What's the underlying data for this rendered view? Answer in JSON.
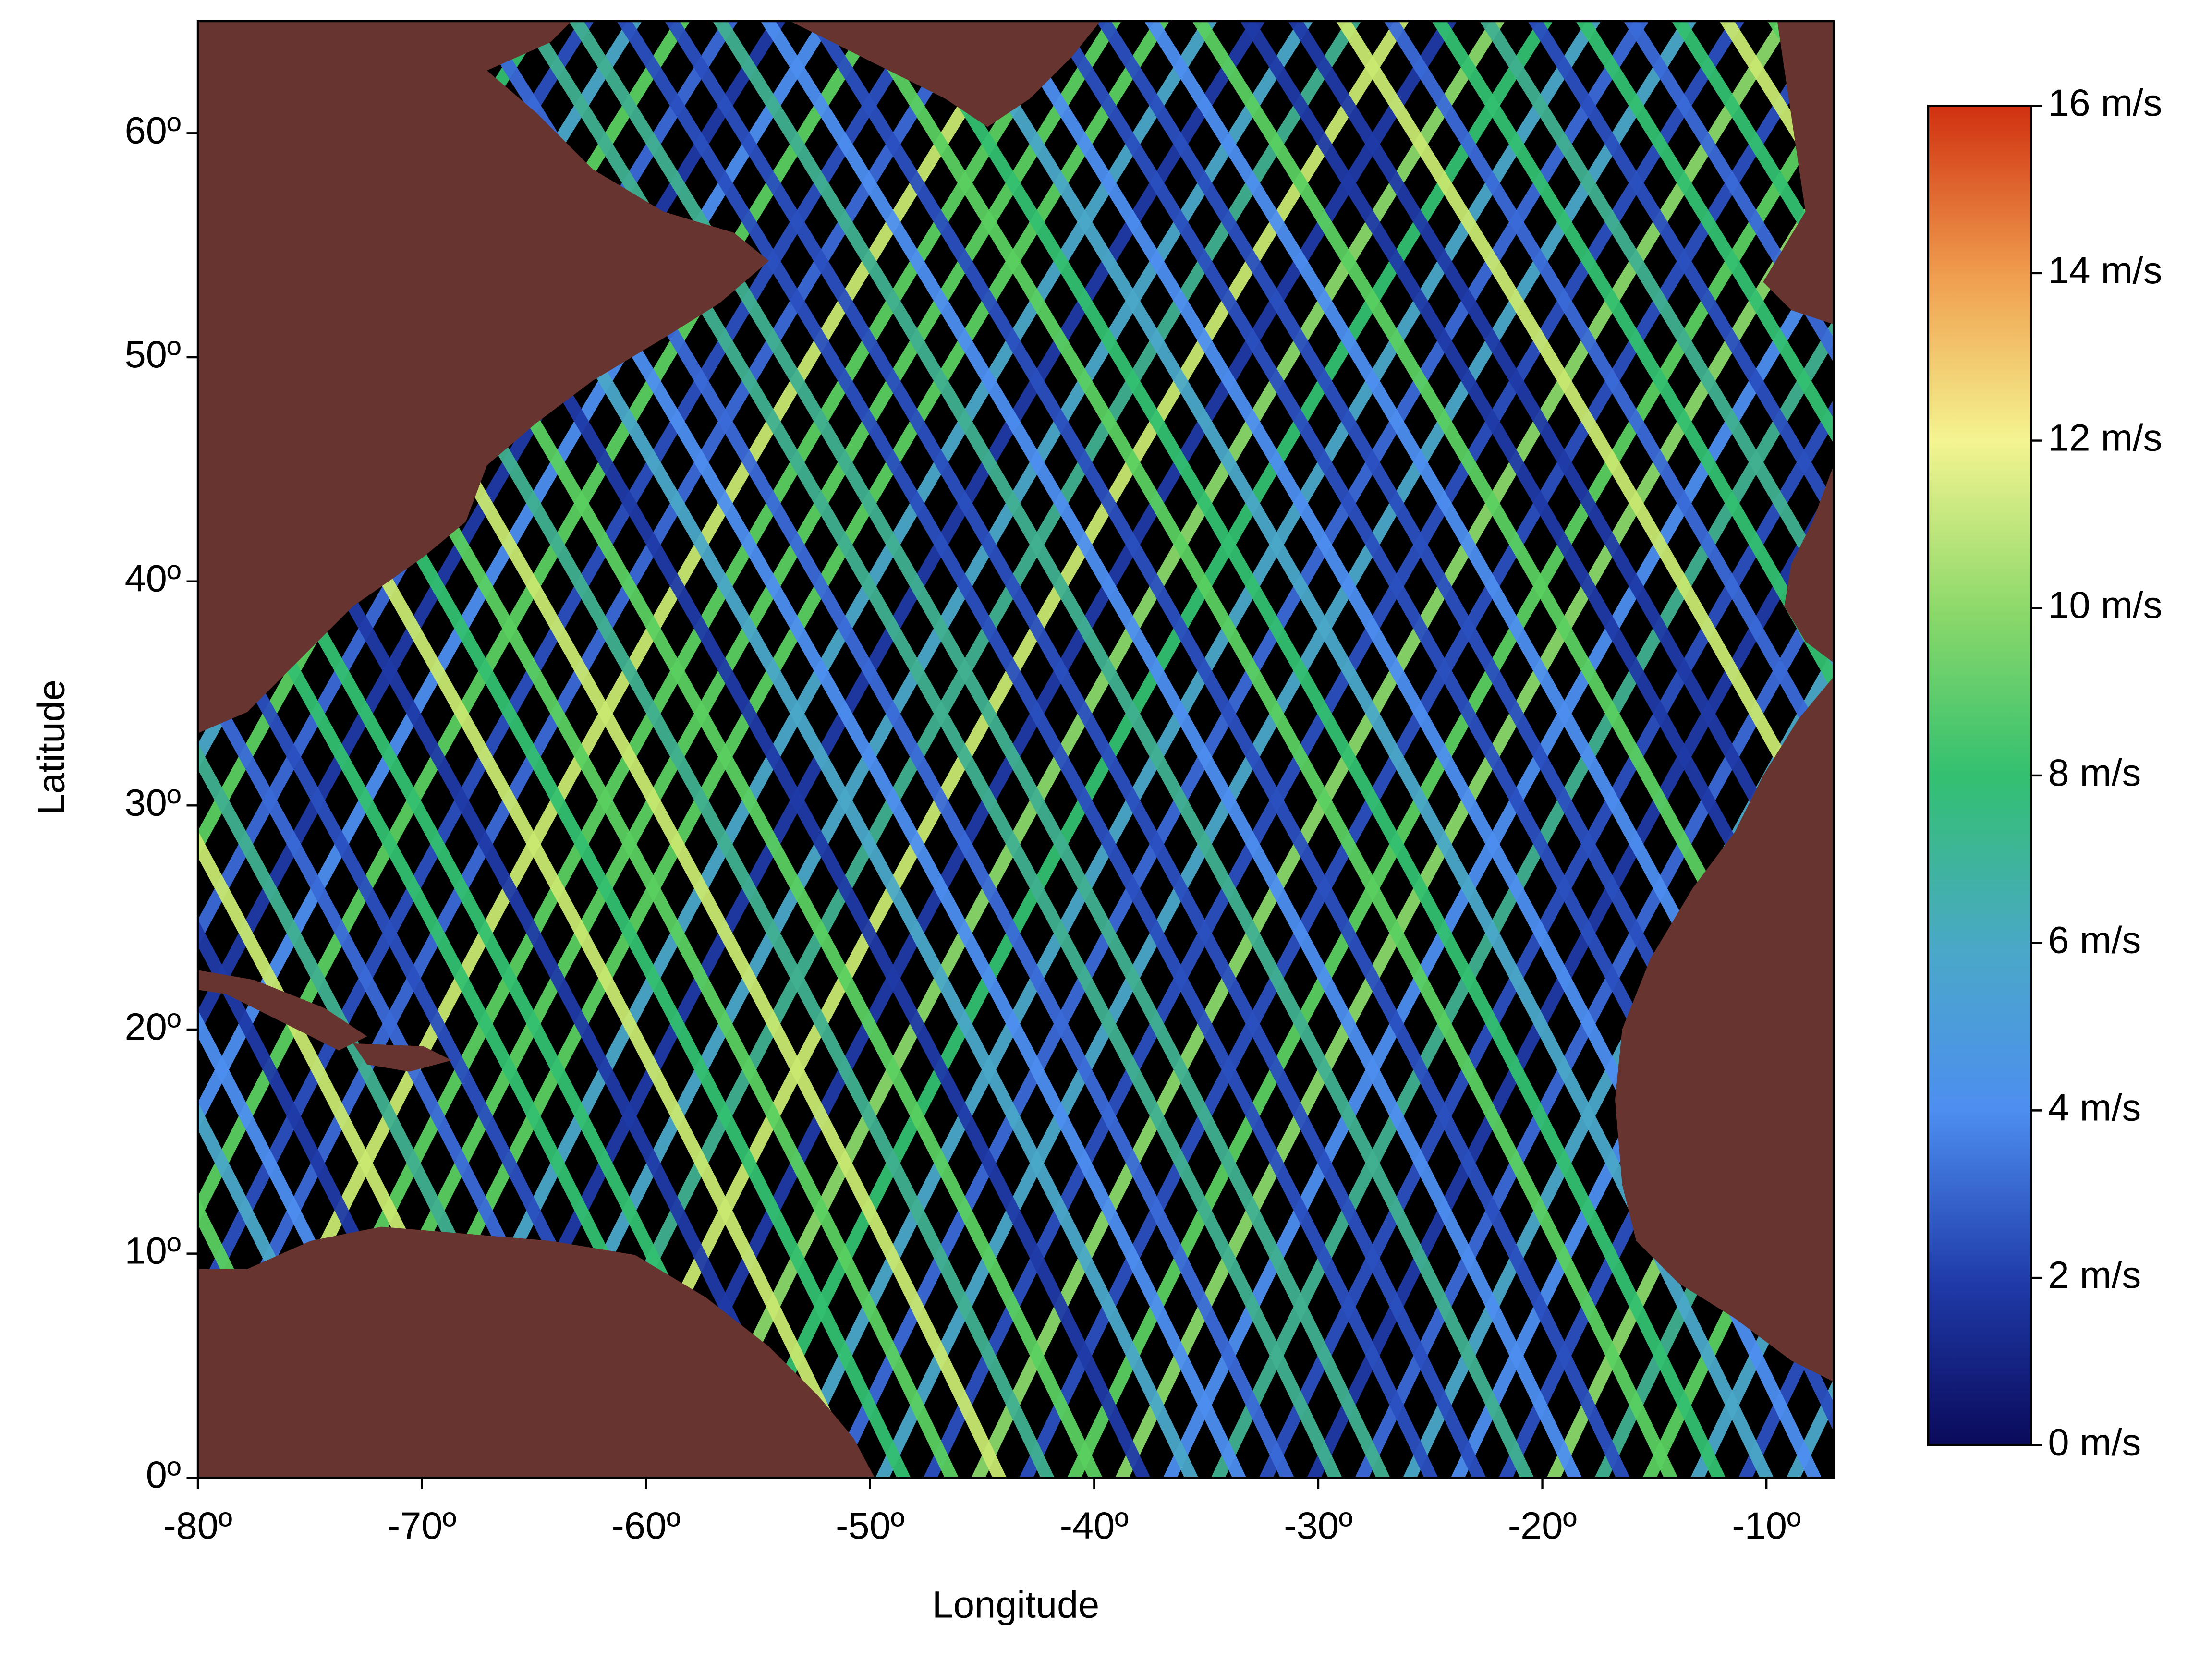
{
  "chart_data": {
    "type": "map",
    "x_label": "Longitude",
    "y_label": "Latitude",
    "xlim": [
      -80,
      -7
    ],
    "ylim": [
      0,
      65
    ],
    "xticks": [
      {
        "value": -80,
        "label": "-80º"
      },
      {
        "value": -70,
        "label": "-70º"
      },
      {
        "value": -60,
        "label": "-60º"
      },
      {
        "value": -50,
        "label": "-50º"
      },
      {
        "value": -40,
        "label": "-40º"
      },
      {
        "value": -30,
        "label": "-30º"
      },
      {
        "value": -20,
        "label": "-20º"
      },
      {
        "value": -10,
        "label": "-10º"
      }
    ],
    "yticks": [
      {
        "value": 0,
        "label": "0º"
      },
      {
        "value": 10,
        "label": "10º"
      },
      {
        "value": 20,
        "label": "20º"
      },
      {
        "value": 30,
        "label": "30º"
      },
      {
        "value": 40,
        "label": "40º"
      },
      {
        "value": 50,
        "label": "50º"
      },
      {
        "value": 60,
        "label": "60º"
      }
    ],
    "colorbar": {
      "lim": [
        0,
        16
      ],
      "ticks": [
        {
          "value": 0,
          "label": "0 m/s"
        },
        {
          "value": 2,
          "label": "2 m/s"
        },
        {
          "value": 4,
          "label": "4 m/s"
        },
        {
          "value": 6,
          "label": "6 m/s"
        },
        {
          "value": 8,
          "label": "8 m/s"
        },
        {
          "value": 10,
          "label": "10 m/s"
        },
        {
          "value": 12,
          "label": "12 m/s"
        },
        {
          "value": 14,
          "label": "14 m/s"
        },
        {
          "value": 16,
          "label": "16 m/s"
        }
      ]
    }
  }
}
